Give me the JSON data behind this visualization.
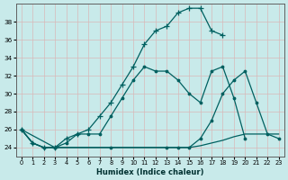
{
  "xlabel": "Humidex (Indice chaleur)",
  "bg_color": "#c8eaea",
  "grid_color": "#b8d8d8",
  "line_color": "#006060",
  "xlim": [
    -0.5,
    23.5
  ],
  "ylim": [
    23.0,
    40.0
  ],
  "yticks": [
    24,
    26,
    28,
    30,
    32,
    34,
    36,
    38
  ],
  "xticks": [
    0,
    1,
    2,
    3,
    4,
    5,
    6,
    7,
    8,
    9,
    10,
    11,
    12,
    13,
    14,
    15,
    16,
    17,
    18,
    19,
    20,
    21,
    22,
    23
  ],
  "line1_x": [
    0,
    1,
    2,
    3,
    4,
    5,
    6,
    7,
    8,
    9,
    10,
    11,
    12,
    13,
    14,
    15,
    16,
    17,
    18
  ],
  "line1_y": [
    26.0,
    24.5,
    24.0,
    24.0,
    25.0,
    25.5,
    26.0,
    27.5,
    29.0,
    31.0,
    33.0,
    35.5,
    37.0,
    37.5,
    39.0,
    39.5,
    39.5,
    37.0,
    36.5
  ],
  "line2_x": [
    0,
    1,
    2,
    3,
    4,
    5,
    6,
    7,
    8,
    9,
    10,
    11,
    12,
    13,
    14,
    15,
    16,
    17,
    18,
    19,
    20
  ],
  "line2_y": [
    26.0,
    24.5,
    24.0,
    24.0,
    24.5,
    25.5,
    25.5,
    25.5,
    27.5,
    29.5,
    31.5,
    33.0,
    32.5,
    32.5,
    31.5,
    30.0,
    29.0,
    32.5,
    33.0,
    29.5,
    25.0
  ],
  "line3_x": [
    0,
    1,
    2,
    3,
    4,
    5,
    6,
    7,
    8,
    9,
    10,
    11,
    12,
    13,
    14,
    15,
    16,
    17,
    18,
    19,
    20,
    21,
    22,
    23
  ],
  "line3_y": [
    26.0,
    24.5,
    24.0,
    24.0,
    24.0,
    24.0,
    24.0,
    24.0,
    24.0,
    24.0,
    24.0,
    24.0,
    24.0,
    24.0,
    24.0,
    24.0,
    24.2,
    24.5,
    24.8,
    25.2,
    25.5,
    25.5,
    25.5,
    25.5
  ],
  "line4_x": [
    0,
    3,
    8,
    13,
    14,
    15,
    16,
    17,
    18,
    19,
    20,
    21,
    22,
    23
  ],
  "line4_y": [
    26.0,
    24.0,
    24.0,
    24.0,
    24.0,
    24.0,
    25.0,
    27.0,
    30.0,
    31.5,
    32.5,
    29.0,
    25.5,
    25.0
  ]
}
